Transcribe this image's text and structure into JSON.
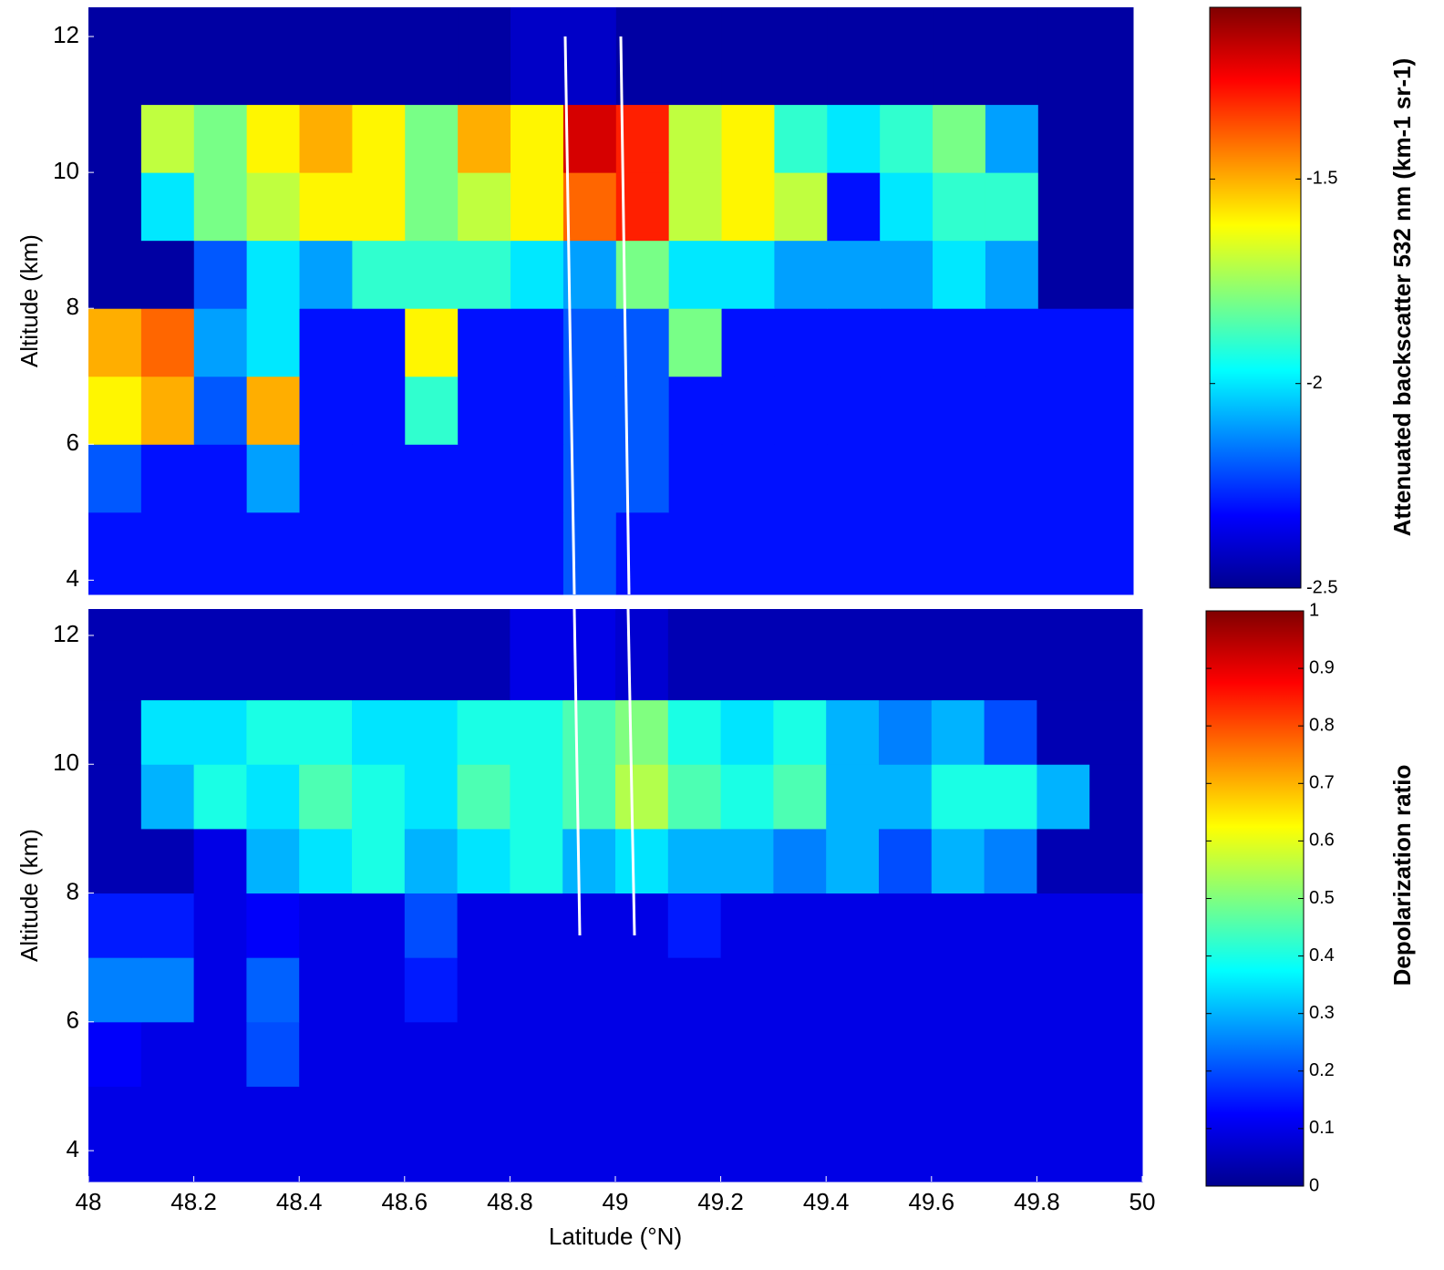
{
  "chart_data": [
    {
      "type": "heatmap",
      "ylabel": "Altitude (km)",
      "colormap": "jet",
      "colorbar_label": "Attenuated backscatter 532 nm (km-1 sr-1)",
      "xlim": [
        48,
        49.98
      ],
      "ylim": [
        3.79,
        12.43
      ],
      "yticks": [
        4,
        6,
        8,
        10,
        12
      ],
      "clim": [
        -2.5,
        -1.08
      ],
      "cticks": [
        -2.5,
        -2,
        -1.5
      ],
      "x_bins": [
        48,
        48.1,
        48.2,
        48.3,
        48.4,
        48.5,
        48.6,
        48.7,
        48.8,
        48.9,
        49,
        49.1,
        49.2,
        49.3,
        49.4,
        49.5,
        49.6,
        49.7,
        49.8,
        49.9,
        49.98
      ],
      "y_bins": [
        3.79,
        5,
        6,
        7,
        8,
        9,
        10,
        11,
        12.43
      ],
      "z": [
        [
          -2.3,
          -2.3,
          -2.3,
          -2.3,
          -2.3,
          -2.3,
          -2.3,
          -2.3,
          -2.3,
          -2.2,
          -2.3,
          -2.3,
          -2.3,
          -2.3,
          -2.3,
          -2.3,
          -2.3,
          -2.3,
          -2.3,
          -2.3
        ],
        [
          -2.2,
          -2.3,
          -2.3,
          -2.1,
          -2.3,
          -2.3,
          -2.3,
          -2.3,
          -2.3,
          -2.2,
          -2.2,
          -2.3,
          -2.3,
          -2.3,
          -2.3,
          -2.3,
          -2.3,
          -2.3,
          -2.3,
          -2.3
        ],
        [
          -1.6,
          -1.5,
          -2.2,
          -1.5,
          -2.3,
          -2.3,
          -1.9,
          -2.3,
          -2.3,
          -2.2,
          -2.2,
          -2.3,
          -2.3,
          -2.3,
          -2.3,
          -2.3,
          -2.3,
          -2.3,
          -2.3,
          -2.3
        ],
        [
          -1.5,
          -1.4,
          -2.1,
          -2.0,
          -2.3,
          -2.3,
          -1.6,
          -2.3,
          -2.3,
          -2.2,
          -2.2,
          -1.8,
          -2.3,
          -2.3,
          -2.3,
          -2.3,
          -2.3,
          -2.3,
          -2.3,
          -2.3
        ],
        [
          -2.45,
          -2.45,
          -2.2,
          -2.0,
          -2.1,
          -1.9,
          -1.9,
          -1.9,
          -2.0,
          -2.1,
          -1.8,
          -2.0,
          -2.0,
          -2.1,
          -2.1,
          -2.1,
          -2.0,
          -2.1,
          -2.45,
          -2.45
        ],
        [
          -2.45,
          -2.0,
          -1.8,
          -1.7,
          -1.6,
          -1.6,
          -1.8,
          -1.7,
          -1.6,
          -1.4,
          -1.3,
          -1.7,
          -1.6,
          -1.7,
          -2.3,
          -2.0,
          -1.9,
          -1.9,
          -2.45,
          -2.45
        ],
        [
          -2.45,
          -1.7,
          -1.8,
          -1.6,
          -1.5,
          -1.6,
          -1.8,
          -1.5,
          -1.6,
          -1.2,
          -1.3,
          -1.7,
          -1.6,
          -1.9,
          -2.0,
          -1.9,
          -1.8,
          -2.1,
          -2.45,
          -2.45
        ],
        [
          -2.45,
          -2.45,
          -2.45,
          -2.45,
          -2.45,
          -2.45,
          -2.45,
          -2.45,
          -2.4,
          -2.4,
          -2.45,
          -2.45,
          -2.45,
          -2.45,
          -2.45,
          -2.45,
          -2.45,
          -2.45,
          -2.45,
          -2.45
        ]
      ]
    },
    {
      "type": "heatmap",
      "ylabel": "Altitude (km)",
      "xlabel": "Latitude (°N)",
      "colormap": "jet",
      "colorbar_label": "Depolarization ratio",
      "xlim": [
        48,
        50
      ],
      "xticks": [
        48,
        48.2,
        48.4,
        48.6,
        48.8,
        49,
        49.2,
        49.4,
        49.6,
        49.8,
        50
      ],
      "ylim": [
        3.52,
        12.41
      ],
      "yticks": [
        4,
        6,
        8,
        10,
        12
      ],
      "clim": [
        0,
        1
      ],
      "cticks": [
        0,
        0.1,
        0.2,
        0.3,
        0.4,
        0.5,
        0.6,
        0.7,
        0.8,
        0.9,
        1
      ],
      "x_bins": [
        48,
        48.1,
        48.2,
        48.3,
        48.4,
        48.5,
        48.6,
        48.7,
        48.8,
        48.9,
        49,
        49.1,
        49.2,
        49.3,
        49.4,
        49.5,
        49.6,
        49.7,
        49.8,
        49.9,
        50
      ],
      "y_bins": [
        3.52,
        5,
        6,
        7,
        8,
        9,
        10,
        11,
        12.41
      ],
      "z": [
        [
          0.1,
          0.1,
          0.1,
          0.1,
          0.1,
          0.1,
          0.1,
          0.1,
          0.1,
          0.1,
          0.1,
          0.1,
          0.1,
          0.1,
          0.1,
          0.1,
          0.1,
          0.1,
          0.1,
          0.1
        ],
        [
          0.12,
          0.1,
          0.1,
          0.2,
          0.1,
          0.1,
          0.1,
          0.1,
          0.1,
          0.1,
          0.1,
          0.1,
          0.1,
          0.1,
          0.1,
          0.1,
          0.1,
          0.1,
          0.1,
          0.1
        ],
        [
          0.25,
          0.25,
          0.1,
          0.22,
          0.1,
          0.1,
          0.15,
          0.1,
          0.1,
          0.1,
          0.1,
          0.1,
          0.1,
          0.1,
          0.1,
          0.1,
          0.1,
          0.1,
          0.1,
          0.1
        ],
        [
          0.15,
          0.15,
          0.1,
          0.12,
          0.1,
          0.1,
          0.2,
          0.1,
          0.1,
          0.1,
          0.1,
          0.15,
          0.1,
          0.1,
          0.1,
          0.1,
          0.1,
          0.1,
          0.1,
          0.1
        ],
        [
          0.05,
          0.05,
          0.1,
          0.3,
          0.35,
          0.4,
          0.3,
          0.35,
          0.4,
          0.3,
          0.35,
          0.3,
          0.3,
          0.25,
          0.3,
          0.2,
          0.3,
          0.25,
          0.05,
          0.05
        ],
        [
          0.05,
          0.3,
          0.4,
          0.35,
          0.45,
          0.4,
          0.35,
          0.45,
          0.4,
          0.45,
          0.55,
          0.45,
          0.4,
          0.45,
          0.3,
          0.3,
          0.4,
          0.4,
          0.3,
          0.05
        ],
        [
          0.05,
          0.35,
          0.35,
          0.4,
          0.4,
          0.35,
          0.35,
          0.4,
          0.4,
          0.45,
          0.5,
          0.4,
          0.35,
          0.4,
          0.3,
          0.25,
          0.3,
          0.2,
          0.05,
          0.05
        ],
        [
          0.05,
          0.05,
          0.05,
          0.05,
          0.05,
          0.05,
          0.05,
          0.05,
          0.1,
          0.1,
          0.08,
          0.05,
          0.05,
          0.05,
          0.05,
          0.05,
          0.05,
          0.05,
          0.05,
          0.05
        ]
      ]
    }
  ]
}
